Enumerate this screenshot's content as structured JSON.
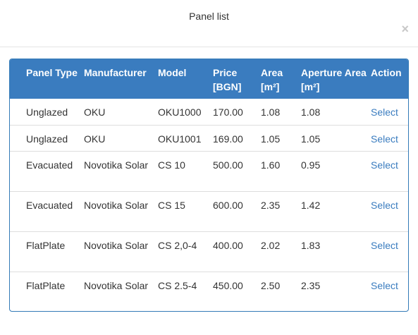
{
  "modal": {
    "title": "Panel list",
    "close_label": "×"
  },
  "table": {
    "headers": {
      "panel_type": "Panel Type",
      "manufacturer": "Manufacturer",
      "model": "Model",
      "price": "Price [BGN]",
      "area": "Area [m²]",
      "aperture_area": "Aperture Area [m²]",
      "action": "Action"
    },
    "rows": [
      {
        "panel_type": "Unglazed",
        "manufacturer": "OKU",
        "model": "OKU1000",
        "price": "170.00",
        "area": "1.08",
        "aperture_area": "1.08",
        "action": "Select"
      },
      {
        "panel_type": "Unglazed",
        "manufacturer": "OKU",
        "model": "OKU1001",
        "price": "169.00",
        "area": "1.05",
        "aperture_area": "1.05",
        "action": "Select"
      },
      {
        "panel_type": "Evacuated",
        "manufacturer": "Novotika Solar",
        "model": "CS 10",
        "price": "500.00",
        "area": "1.60",
        "aperture_area": "0.95",
        "action": "Select"
      },
      {
        "panel_type": "Evacuated",
        "manufacturer": "Novotika Solar",
        "model": "CS 15",
        "price": "600.00",
        "area": "2.35",
        "aperture_area": "1.42",
        "action": "Select"
      },
      {
        "panel_type": "FlatPlate",
        "manufacturer": "Novotika Solar",
        "model": "CS 2,0-4",
        "price": "400.00",
        "area": "2.02",
        "aperture_area": "1.83",
        "action": "Select"
      },
      {
        "panel_type": "FlatPlate",
        "manufacturer": "Novotika Solar",
        "model": "CS 2.5-4",
        "price": "450.00",
        "area": "2.50",
        "aperture_area": "2.35",
        "action": "Select"
      }
    ]
  },
  "colors": {
    "header_bg": "#3a7cbf",
    "link": "#3a7cbf",
    "border": "#337ab7"
  }
}
